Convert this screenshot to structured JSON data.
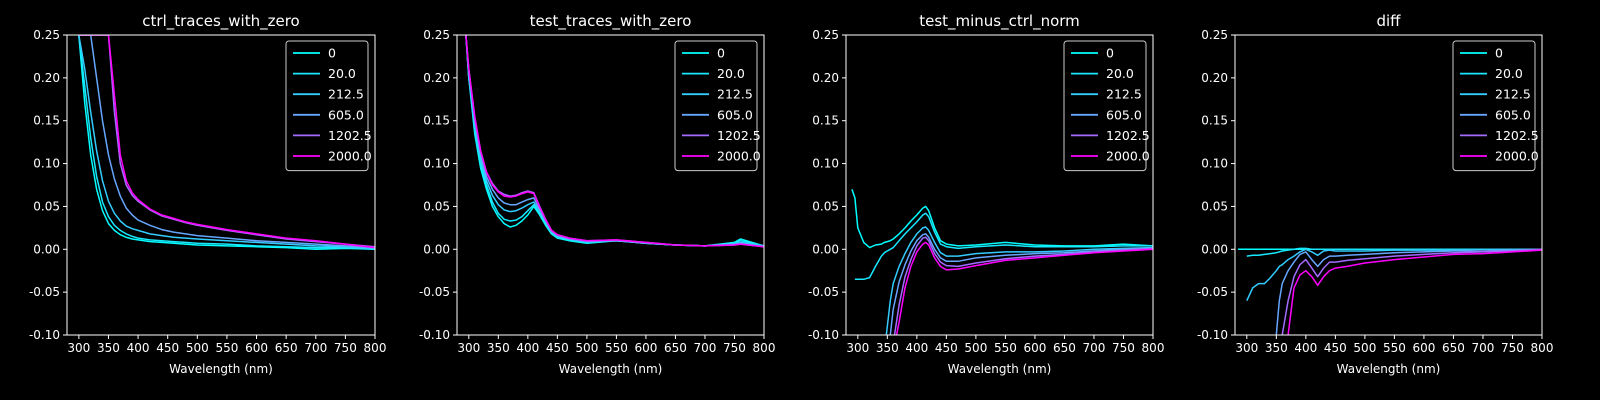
{
  "chart_data": [
    {
      "type": "line",
      "title": "ctrl_traces_with_zero",
      "xlabel": "Wavelength (nm)",
      "ylabel": "",
      "xlim": [
        280,
        800
      ],
      "ylim": [
        -0.1,
        0.25
      ],
      "xticks": [
        "300",
        "350",
        "400",
        "450",
        "500",
        "550",
        "600",
        "650",
        "700",
        "750",
        "800"
      ],
      "yticks": [
        "0.25",
        "0.20",
        "0.15",
        "0.10",
        "0.05",
        "0.00",
        "-0.05",
        "-0.10"
      ],
      "grid": false,
      "legend_position": "top-right",
      "x": [
        300,
        310,
        320,
        330,
        340,
        350,
        360,
        370,
        380,
        390,
        400,
        420,
        440,
        460,
        480,
        500,
        550,
        600,
        650,
        700,
        750,
        800
      ],
      "series": [
        {
          "name": "0",
          "values": [
            0.25,
            0.17,
            0.11,
            0.07,
            0.045,
            0.03,
            0.022,
            0.017,
            0.014,
            0.012,
            0.011,
            0.009,
            0.008,
            0.007,
            0.006,
            0.005,
            0.004,
            0.003,
            0.002,
            0.0,
            0.001,
            0.0
          ]
        },
        {
          "name": "20.0",
          "values": [
            0.25,
            0.19,
            0.13,
            0.085,
            0.055,
            0.038,
            0.028,
            0.022,
            0.018,
            0.015,
            0.013,
            0.011,
            0.01,
            0.009,
            0.008,
            0.007,
            0.006,
            0.004,
            0.003,
            0.002,
            0.002,
            0.0
          ]
        },
        {
          "name": "212.5",
          "values": [
            0.25,
            0.21,
            0.16,
            0.115,
            0.08,
            0.056,
            0.042,
            0.033,
            0.027,
            0.024,
            0.022,
            0.018,
            0.016,
            0.014,
            0.013,
            0.012,
            0.01,
            0.008,
            0.006,
            0.004,
            0.003,
            0.001
          ]
        },
        {
          "name": "605.0",
          "values": [
            0.25,
            0.25,
            0.25,
            0.2,
            0.15,
            0.11,
            0.082,
            0.062,
            0.048,
            0.04,
            0.034,
            0.028,
            0.023,
            0.02,
            0.018,
            0.016,
            0.013,
            0.01,
            0.008,
            0.006,
            0.004,
            0.002
          ]
        },
        {
          "name": "1202.5",
          "values": [
            0.25,
            0.25,
            0.25,
            0.25,
            0.25,
            0.25,
            0.16,
            0.1,
            0.075,
            0.063,
            0.056,
            0.046,
            0.039,
            0.035,
            0.031,
            0.028,
            0.022,
            0.017,
            0.012,
            0.009,
            0.006,
            0.003
          ]
        },
        {
          "name": "2000.0",
          "values": [
            0.25,
            0.25,
            0.25,
            0.25,
            0.25,
            0.25,
            0.18,
            0.11,
            0.08,
            0.066,
            0.058,
            0.047,
            0.04,
            0.036,
            0.032,
            0.029,
            0.023,
            0.018,
            0.013,
            0.01,
            0.006,
            0.002
          ]
        }
      ]
    },
    {
      "type": "line",
      "title": "test_traces_with_zero",
      "xlabel": "Wavelength (nm)",
      "ylabel": "",
      "xlim": [
        280,
        800
      ],
      "ylim": [
        -0.1,
        0.25
      ],
      "xticks": [
        "300",
        "350",
        "400",
        "450",
        "500",
        "550",
        "600",
        "650",
        "700",
        "750",
        "800"
      ],
      "yticks": [
        "0.25",
        "0.20",
        "0.15",
        "0.10",
        "0.05",
        "0.00",
        "-0.05",
        "-0.10"
      ],
      "grid": false,
      "legend_position": "top-right",
      "x": [
        295,
        300,
        310,
        320,
        330,
        340,
        350,
        360,
        370,
        380,
        390,
        400,
        410,
        420,
        430,
        440,
        450,
        470,
        500,
        550,
        600,
        650,
        700,
        750,
        760,
        800
      ],
      "series": [
        {
          "name": "0",
          "values": [
            0.25,
            0.2,
            0.135,
            0.095,
            0.07,
            0.05,
            0.038,
            0.03,
            0.026,
            0.028,
            0.033,
            0.04,
            0.05,
            0.04,
            0.028,
            0.018,
            0.013,
            0.01,
            0.007,
            0.01,
            0.007,
            0.005,
            0.004,
            0.008,
            0.012,
            0.004
          ]
        },
        {
          "name": "20.0",
          "values": [
            0.25,
            0.2,
            0.14,
            0.1,
            0.075,
            0.055,
            0.042,
            0.035,
            0.033,
            0.034,
            0.038,
            0.045,
            0.052,
            0.042,
            0.03,
            0.019,
            0.014,
            0.011,
            0.008,
            0.01,
            0.007,
            0.005,
            0.004,
            0.007,
            0.01,
            0.004
          ]
        },
        {
          "name": "212.5",
          "values": [
            0.25,
            0.2,
            0.145,
            0.105,
            0.08,
            0.063,
            0.052,
            0.046,
            0.044,
            0.045,
            0.048,
            0.052,
            0.055,
            0.044,
            0.032,
            0.02,
            0.015,
            0.012,
            0.009,
            0.01,
            0.007,
            0.005,
            0.004,
            0.006,
            0.008,
            0.004
          ]
        },
        {
          "name": "605.0",
          "values": [
            0.25,
            0.21,
            0.15,
            0.11,
            0.085,
            0.07,
            0.06,
            0.054,
            0.052,
            0.052,
            0.055,
            0.058,
            0.06,
            0.046,
            0.033,
            0.021,
            0.016,
            0.012,
            0.009,
            0.01,
            0.007,
            0.005,
            0.004,
            0.006,
            0.007,
            0.003
          ]
        },
        {
          "name": "1202.5",
          "values": [
            0.25,
            0.21,
            0.155,
            0.115,
            0.09,
            0.077,
            0.068,
            0.064,
            0.062,
            0.063,
            0.066,
            0.068,
            0.066,
            0.05,
            0.035,
            0.022,
            0.017,
            0.013,
            0.01,
            0.011,
            0.008,
            0.005,
            0.004,
            0.005,
            0.006,
            0.003
          ]
        },
        {
          "name": "2000.0",
          "values": [
            0.25,
            0.21,
            0.155,
            0.115,
            0.09,
            0.075,
            0.067,
            0.062,
            0.061,
            0.062,
            0.065,
            0.067,
            0.065,
            0.049,
            0.035,
            0.022,
            0.017,
            0.013,
            0.01,
            0.011,
            0.008,
            0.005,
            0.004,
            0.005,
            0.006,
            0.003
          ]
        }
      ]
    },
    {
      "type": "line",
      "title": "test_minus_ctrl_norm",
      "xlabel": "Wavelength (nm)",
      "ylabel": "",
      "xlim": [
        280,
        800
      ],
      "ylim": [
        -0.1,
        0.25
      ],
      "xticks": [
        "300",
        "350",
        "400",
        "450",
        "500",
        "550",
        "600",
        "650",
        "700",
        "750",
        "800"
      ],
      "yticks": [
        "0.25",
        "0.20",
        "0.15",
        "0.10",
        "0.05",
        "0.00",
        "-0.05",
        "-0.10"
      ],
      "grid": false,
      "legend_position": "top-right",
      "x": [
        290,
        295,
        300,
        310,
        320,
        330,
        340,
        345,
        350,
        355,
        360,
        370,
        380,
        390,
        400,
        410,
        415,
        420,
        430,
        440,
        450,
        470,
        500,
        550,
        600,
        650,
        700,
        750,
        800
      ],
      "series": [
        {
          "name": "0",
          "values": [
            0.07,
            0.06,
            0.025,
            0.008,
            0.002,
            0.005,
            0.006,
            0.008,
            0.009,
            0.01,
            0.012,
            0.018,
            0.025,
            0.033,
            0.04,
            0.048,
            0.05,
            0.045,
            0.025,
            0.01,
            0.006,
            0.004,
            0.005,
            0.008,
            0.005,
            0.004,
            0.004,
            0.006,
            0.004
          ]
        },
        {
          "name": "20.0",
          "values": [
            null,
            -0.035,
            -0.035,
            -0.035,
            -0.033,
            -0.02,
            -0.008,
            -0.004,
            -0.002,
            0.0,
            0.002,
            0.01,
            0.018,
            0.025,
            0.032,
            0.04,
            0.042,
            0.038,
            0.02,
            0.006,
            0.003,
            0.001,
            0.003,
            0.005,
            0.003,
            0.003,
            0.003,
            0.004,
            0.004
          ]
        },
        {
          "name": "212.5",
          "values": [
            null,
            null,
            null,
            null,
            null,
            null,
            null,
            -0.12,
            -0.09,
            -0.06,
            -0.04,
            -0.02,
            -0.005,
            0.008,
            0.018,
            0.025,
            0.026,
            0.022,
            0.008,
            -0.004,
            -0.008,
            -0.008,
            -0.005,
            -0.003,
            -0.003,
            -0.002,
            0.0,
            0.001,
            0.002
          ]
        },
        {
          "name": "605.0",
          "values": [
            null,
            null,
            null,
            null,
            null,
            null,
            null,
            null,
            -0.12,
            -0.1,
            -0.07,
            -0.038,
            -0.018,
            -0.002,
            0.01,
            0.017,
            0.018,
            0.014,
            0.0,
            -0.01,
            -0.014,
            -0.014,
            -0.01,
            -0.007,
            -0.005,
            -0.004,
            -0.002,
            0.0,
            0.001
          ]
        },
        {
          "name": "1202.5",
          "values": [
            null,
            null,
            null,
            null,
            null,
            null,
            null,
            null,
            null,
            -0.12,
            -0.11,
            -0.065,
            -0.032,
            -0.012,
            0.004,
            0.013,
            0.014,
            0.01,
            -0.005,
            -0.015,
            -0.019,
            -0.02,
            -0.016,
            -0.011,
            -0.008,
            -0.006,
            -0.003,
            -0.001,
            0.001
          ]
        },
        {
          "name": "2000.0",
          "values": [
            null,
            null,
            null,
            null,
            null,
            null,
            null,
            null,
            null,
            null,
            -0.12,
            -0.085,
            -0.045,
            -0.02,
            -0.003,
            0.006,
            0.008,
            0.005,
            -0.01,
            -0.02,
            -0.024,
            -0.023,
            -0.019,
            -0.013,
            -0.01,
            -0.007,
            -0.004,
            -0.002,
            0.0
          ]
        }
      ]
    },
    {
      "type": "line",
      "title": "diff",
      "xlabel": "Wavelength (nm)",
      "ylabel": "",
      "xlim": [
        280,
        800
      ],
      "ylim": [
        -0.1,
        0.25
      ],
      "xticks": [
        "300",
        "350",
        "400",
        "450",
        "500",
        "550",
        "600",
        "650",
        "700",
        "750",
        "800"
      ],
      "yticks": [
        "0.25",
        "0.20",
        "0.15",
        "0.10",
        "0.05",
        "0.00",
        "-0.05",
        "-0.10"
      ],
      "grid": false,
      "legend_position": "top-right",
      "x": [
        285,
        295,
        300,
        310,
        320,
        330,
        340,
        350,
        355,
        360,
        370,
        380,
        390,
        400,
        410,
        420,
        430,
        440,
        450,
        470,
        500,
        550,
        600,
        650,
        700,
        750,
        800
      ],
      "series": [
        {
          "name": "0",
          "values": [
            0.0,
            0.0,
            0.0,
            0.0,
            0.0,
            0.0,
            0.0,
            0.0,
            0.0,
            0.0,
            0.0,
            0.0,
            0.0,
            0.0,
            0.0,
            0.0,
            0.0,
            0.0,
            0.0,
            0.0,
            0.0,
            0.0,
            0.0,
            0.0,
            0.0,
            0.0,
            0.0
          ]
        },
        {
          "name": "20.0",
          "values": [
            null,
            null,
            -0.008,
            -0.007,
            -0.007,
            -0.006,
            -0.005,
            -0.004,
            -0.003,
            -0.002,
            -0.001,
            0.0,
            0.001,
            0.001,
            0.0,
            0.0,
            0.0,
            0.0,
            0.0,
            0.0,
            0.0,
            0.0,
            0.0,
            0.0,
            0.0,
            0.0,
            0.0
          ]
        },
        {
          "name": "212.5",
          "values": [
            null,
            null,
            -0.06,
            -0.045,
            -0.04,
            -0.04,
            -0.033,
            -0.025,
            -0.02,
            -0.018,
            -0.012,
            -0.008,
            -0.003,
            0.0,
            -0.003,
            -0.007,
            -0.002,
            -0.001,
            -0.002,
            -0.002,
            -0.002,
            -0.001,
            -0.001,
            -0.001,
            0.0,
            0.0,
            0.0
          ]
        },
        {
          "name": "605.0",
          "values": [
            null,
            null,
            null,
            null,
            null,
            null,
            null,
            -0.1,
            -0.06,
            -0.04,
            -0.025,
            -0.015,
            -0.006,
            -0.003,
            -0.012,
            -0.02,
            -0.012,
            -0.008,
            -0.008,
            -0.007,
            -0.006,
            -0.004,
            -0.003,
            -0.002,
            -0.002,
            -0.001,
            0.0
          ]
        },
        {
          "name": "1202.5",
          "values": [
            null,
            null,
            null,
            null,
            null,
            null,
            null,
            null,
            null,
            -0.1,
            -0.06,
            -0.032,
            -0.018,
            -0.012,
            -0.022,
            -0.032,
            -0.022,
            -0.015,
            -0.015,
            -0.013,
            -0.011,
            -0.008,
            -0.006,
            -0.004,
            -0.003,
            -0.002,
            0.0
          ]
        },
        {
          "name": "2000.0",
          "values": [
            null,
            null,
            null,
            null,
            null,
            null,
            null,
            null,
            null,
            null,
            -0.1,
            -0.045,
            -0.03,
            -0.025,
            -0.032,
            -0.042,
            -0.032,
            -0.025,
            -0.022,
            -0.02,
            -0.016,
            -0.012,
            -0.009,
            -0.006,
            -0.005,
            -0.003,
            -0.001
          ]
        }
      ]
    }
  ],
  "colors": {
    "background": "#000000",
    "foreground": "#ffffff",
    "series": [
      "#00ffff",
      "#17e8ff",
      "#33ccff",
      "#66a6ff",
      "#a36bff",
      "#ff00ff"
    ]
  }
}
